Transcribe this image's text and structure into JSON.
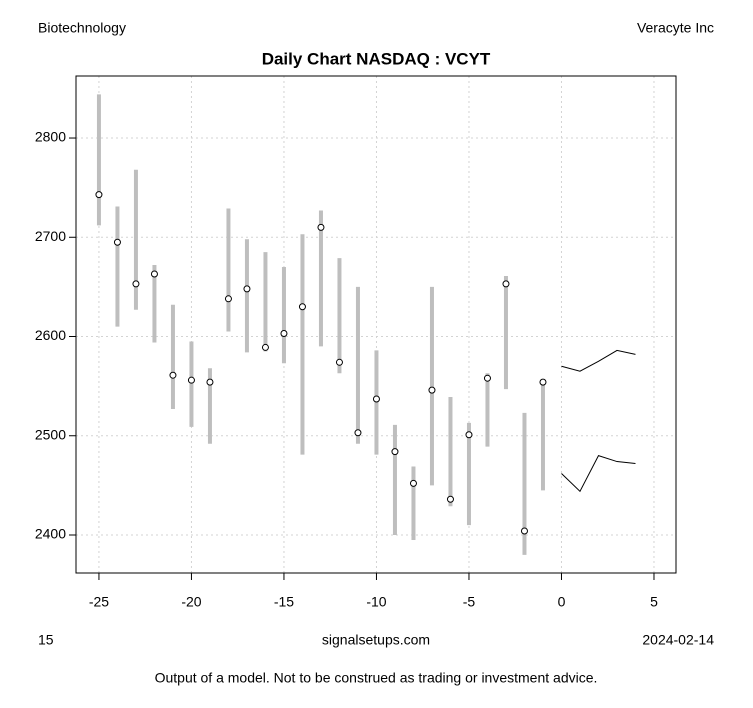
{
  "header": {
    "left": "Biotechnology",
    "right": "Veracyte Inc"
  },
  "footer": {
    "left": "15",
    "center": "signalsetups.com",
    "right": "2024-02-14",
    "note": "Output of a model. Not to be construed as trading or investment advice."
  },
  "chart_data": {
    "type": "hilo",
    "title": "Daily Chart NASDAQ : VCYT",
    "x": [
      -25,
      -24,
      -23,
      -22,
      -21,
      -20,
      -19,
      -18,
      -17,
      -16,
      -15,
      -14,
      -13,
      -12,
      -11,
      -10,
      -9,
      -8,
      -7,
      -6,
      -5,
      -4,
      -3,
      -2,
      -1
    ],
    "high": [
      2844,
      2731,
      2768,
      2672,
      2632,
      2595,
      2568,
      2729,
      2698,
      2685,
      2670,
      2703,
      2727,
      2679,
      2650,
      2586,
      2511,
      2469,
      2650,
      2539,
      2513,
      2563,
      2661,
      2523,
      2556
    ],
    "low": [
      2712,
      2610,
      2627,
      2594,
      2527,
      2509,
      2492,
      2605,
      2584,
      2585,
      2573,
      2481,
      2590,
      2563,
      2492,
      2481,
      2400,
      2395,
      2450,
      2429,
      2410,
      2489,
      2547,
      2380,
      2445
    ],
    "close": [
      2743,
      2695,
      2653,
      2663,
      2561,
      2556,
      2554,
      2638,
      2648,
      2589,
      2603,
      2630,
      2710,
      2574,
      2503,
      2537,
      2484,
      2452,
      2546,
      2436,
      2501,
      2558,
      2653,
      2404,
      2554
    ],
    "forecast_x": [
      0,
      1,
      2,
      3,
      4
    ],
    "forecast_upper": [
      2570,
      2565,
      2575,
      2586,
      2582
    ],
    "forecast_lower": [
      2462,
      2444,
      2480,
      2474,
      2472
    ],
    "bar_color": "#bebebe",
    "line_color": "#000000",
    "xlim": [
      -26.24,
      6.19
    ],
    "ylim": [
      2361.7,
      2862.5
    ],
    "xticks": [
      -25,
      -20,
      -15,
      -10,
      -5,
      0,
      5
    ],
    "yticks": [
      2400,
      2500,
      2600,
      2700,
      2800
    ],
    "grid": true
  }
}
